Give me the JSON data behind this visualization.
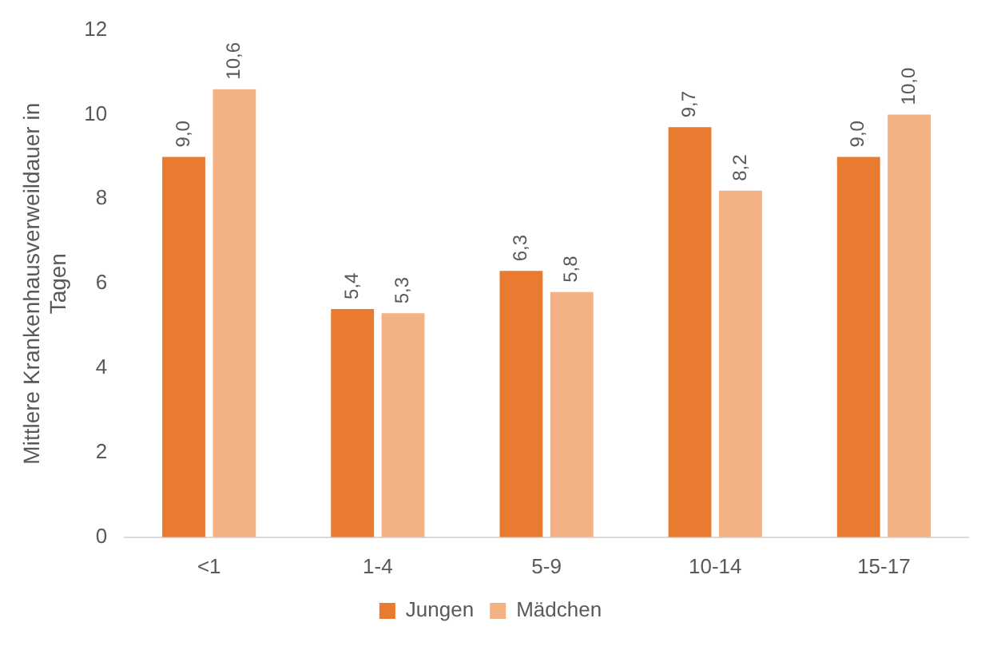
{
  "chart_data": {
    "type": "bar",
    "ylabel": "Mittlere Krankenhausverweildauer in Tagen",
    "categories": [
      "<1",
      "1-4",
      "5-9",
      "10-14",
      "15-17"
    ],
    "series": [
      {
        "name": "Jungen",
        "color": "#e87b2f",
        "values": [
          9.0,
          5.4,
          6.3,
          9.7,
          9.0
        ],
        "value_labels": [
          "9,0",
          "5,4",
          "6,3",
          "9,7",
          "9,0"
        ]
      },
      {
        "name": "Mädchen",
        "color": "#f4b184",
        "values": [
          10.6,
          5.3,
          5.8,
          8.2,
          10.0
        ],
        "value_labels": [
          "10,6",
          "5,3",
          "5,8",
          "8,2",
          "10,0"
        ]
      }
    ],
    "ylim": [
      0,
      12
    ],
    "yticks": [
      0,
      2,
      4,
      6,
      8,
      10,
      12
    ],
    "legend": "bottom"
  }
}
